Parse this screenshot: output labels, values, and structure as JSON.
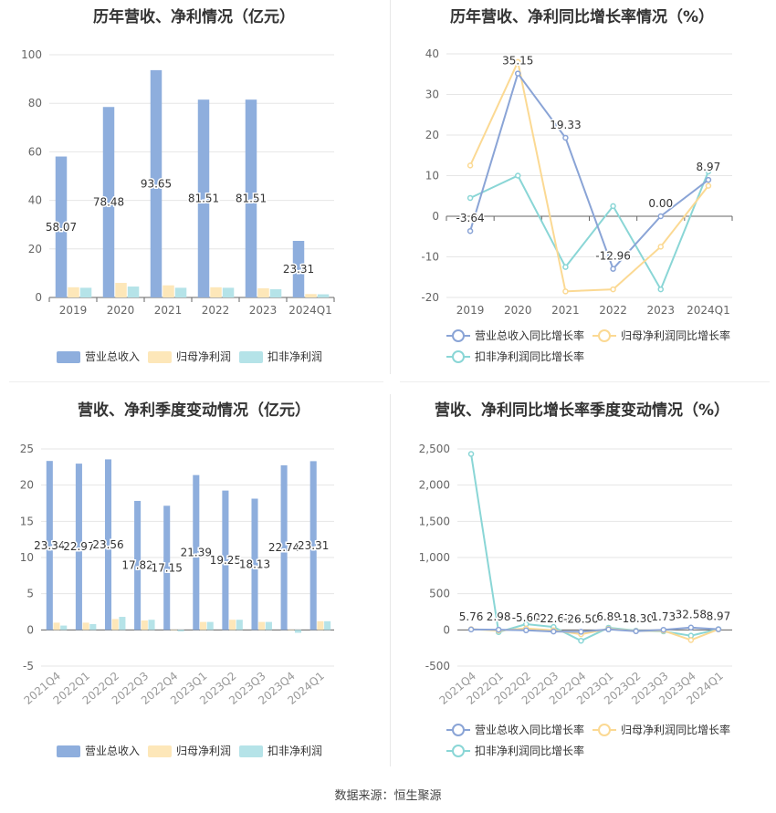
{
  "source": "数据来源：恒生聚源",
  "colors": {
    "revenue": "#8eaedd",
    "parent": "#fde7b9",
    "deducted": "#b5e3e8",
    "revenue_line": "#8aa4d6",
    "parent_line": "#fbd993",
    "deducted_line": "#8ad6d6"
  },
  "chart_data": [
    {
      "type": "bar",
      "title": "历年营收、净利情况（亿元）",
      "categories": [
        "2019",
        "2020",
        "2021",
        "2022",
        "2023",
        "2024Q1"
      ],
      "ylim": [
        0,
        100
      ],
      "yticks": [
        "0",
        "20",
        "40",
        "60",
        "80",
        "100"
      ],
      "series": [
        {
          "name": "营业总收入",
          "values": [
            58.07,
            78.48,
            93.65,
            81.51,
            81.51,
            23.31
          ],
          "labels": [
            "58.07",
            "78.48",
            "93.65",
            "81.51",
            "81.51",
            "23.31"
          ]
        },
        {
          "name": "归母净利润",
          "values": [
            4.2,
            6.0,
            5.0,
            4.2,
            3.8,
            1.4
          ]
        },
        {
          "name": "扣非净利润",
          "values": [
            4.0,
            4.5,
            4.0,
            4.0,
            3.4,
            1.3
          ]
        }
      ],
      "legend": "bottom",
      "grid": true
    },
    {
      "type": "line",
      "title": "历年营收、净利同比增长率情况（%）",
      "categories": [
        "2019",
        "2020",
        "2021",
        "2022",
        "2023",
        "2024Q1"
      ],
      "ylim": [
        -20,
        40
      ],
      "yticks": [
        "-20",
        "-10",
        "0",
        "10",
        "20",
        "30",
        "40"
      ],
      "series": [
        {
          "name": "营业总收入同比增长率",
          "values": [
            -3.64,
            35.15,
            19.33,
            -12.96,
            0.0,
            8.97
          ],
          "labels": [
            "-3.64",
            "35.15",
            "19.33",
            "-12.96",
            "0.00",
            "8.97"
          ]
        },
        {
          "name": "归母净利润同比增长率",
          "values": [
            12.5,
            38.0,
            -18.5,
            -18.0,
            -7.5,
            7.5
          ]
        },
        {
          "name": "扣非净利润同比增长率",
          "values": [
            4.5,
            10.0,
            -12.5,
            2.5,
            -18.0,
            11.0
          ]
        }
      ],
      "legend": "bottom",
      "grid": true
    },
    {
      "type": "bar",
      "title": "营收、净利季度变动情况（亿元）",
      "categories": [
        "2021Q4",
        "2022Q1",
        "2022Q2",
        "2022Q3",
        "2022Q4",
        "2023Q1",
        "2023Q2",
        "2023Q3",
        "2023Q4",
        "2024Q1"
      ],
      "ylim": [
        -5,
        25
      ],
      "yticks": [
        "-5",
        "0",
        "5",
        "10",
        "15",
        "20",
        "25"
      ],
      "series": [
        {
          "name": "营业总收入",
          "values": [
            23.34,
            22.97,
            23.56,
            17.82,
            17.15,
            21.39,
            19.25,
            18.13,
            22.74,
            23.31
          ],
          "labels": [
            "23.34",
            "22.97",
            "23.56",
            "17.82",
            "17.15",
            "21.39",
            "19.25",
            "18.13",
            "22.74",
            "23.31"
          ]
        },
        {
          "name": "归母净利润",
          "values": [
            1.0,
            1.0,
            1.5,
            1.3,
            0.0,
            1.1,
            1.4,
            1.1,
            0.0,
            1.2
          ]
        },
        {
          "name": "扣非净利润",
          "values": [
            0.6,
            0.8,
            1.8,
            1.4,
            -0.2,
            1.1,
            1.4,
            1.1,
            -0.4,
            1.2
          ]
        }
      ],
      "legend": "bottom",
      "grid": true
    },
    {
      "type": "line",
      "title": "营收、净利同比增长率季度变动情况（%）",
      "categories": [
        "2021Q4",
        "2022Q1",
        "2022Q2",
        "2022Q3",
        "2022Q4",
        "2023Q1",
        "2023Q2",
        "2023Q3",
        "2023Q4",
        "2024Q1"
      ],
      "ylim": [
        -500,
        2500
      ],
      "yticks": [
        "-500",
        "0",
        "500",
        "1,000",
        "1,500",
        "2,000",
        "2,500"
      ],
      "series": [
        {
          "name": "营业总收入同比增长率",
          "values": [
            5.76,
            2.98,
            -5.6,
            -22.67,
            -26.5,
            6.89,
            -18.3,
            1.73,
            32.58,
            8.97
          ],
          "labels": [
            "5.76",
            "2.98",
            "-5.60",
            "-22.67",
            "-26.50",
            "6.89",
            "-18.30",
            "1.73",
            "32.58",
            "8.97"
          ]
        },
        {
          "name": "归母净利润同比增长率",
          "values": [
            10,
            -10,
            20,
            -5,
            -60,
            15,
            -15,
            -10,
            -140,
            8
          ]
        },
        {
          "name": "扣非净利润同比增长率",
          "values": [
            2430,
            -30,
            80,
            40,
            -150,
            30,
            -10,
            -20,
            -80,
            10
          ]
        }
      ],
      "legend": "bottom",
      "grid": true
    }
  ]
}
